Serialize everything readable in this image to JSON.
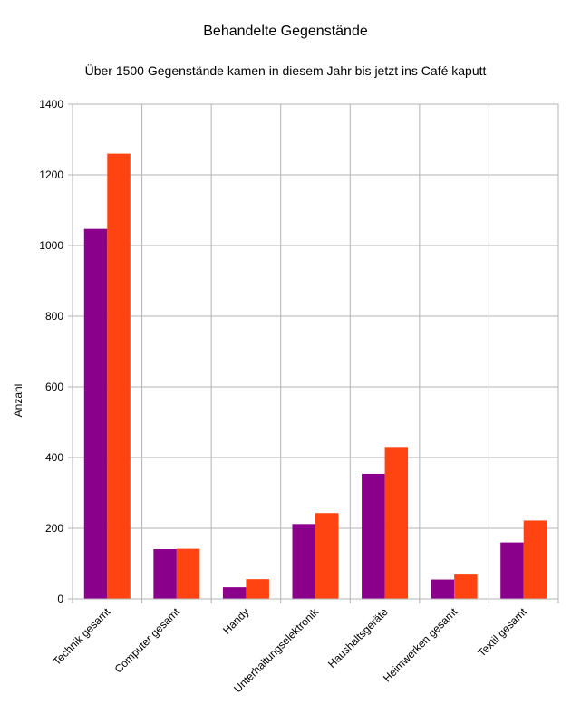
{
  "chart_data": {
    "type": "bar",
    "title": "Behandelte Gegenstände",
    "subtitle": "Über 1500 Gegenstände kamen in diesem Jahr bis jetzt ins Café kaputt",
    "xlabel": "",
    "ylabel": "Anzahl",
    "ylim": [
      0,
      1400
    ],
    "yticks": [
      "0",
      "200",
      "400",
      "600",
      "800",
      "1000",
      "1200",
      "1400"
    ],
    "grid": true,
    "legend": "none",
    "categories": [
      "Technik gesamt",
      "Computer gesamt",
      "Handy",
      "Unterhaltungselektronik",
      "Haushaltsgeräte",
      "Heimwerken gesamt",
      "Textil gesamt"
    ],
    "series": [
      {
        "color": "#8b008b",
        "values": [
          1047,
          141,
          33,
          212,
          354,
          55,
          160
        ]
      },
      {
        "color": "#ff4412",
        "values": [
          1260,
          142,
          56,
          243,
          430,
          69,
          222
        ]
      }
    ]
  }
}
